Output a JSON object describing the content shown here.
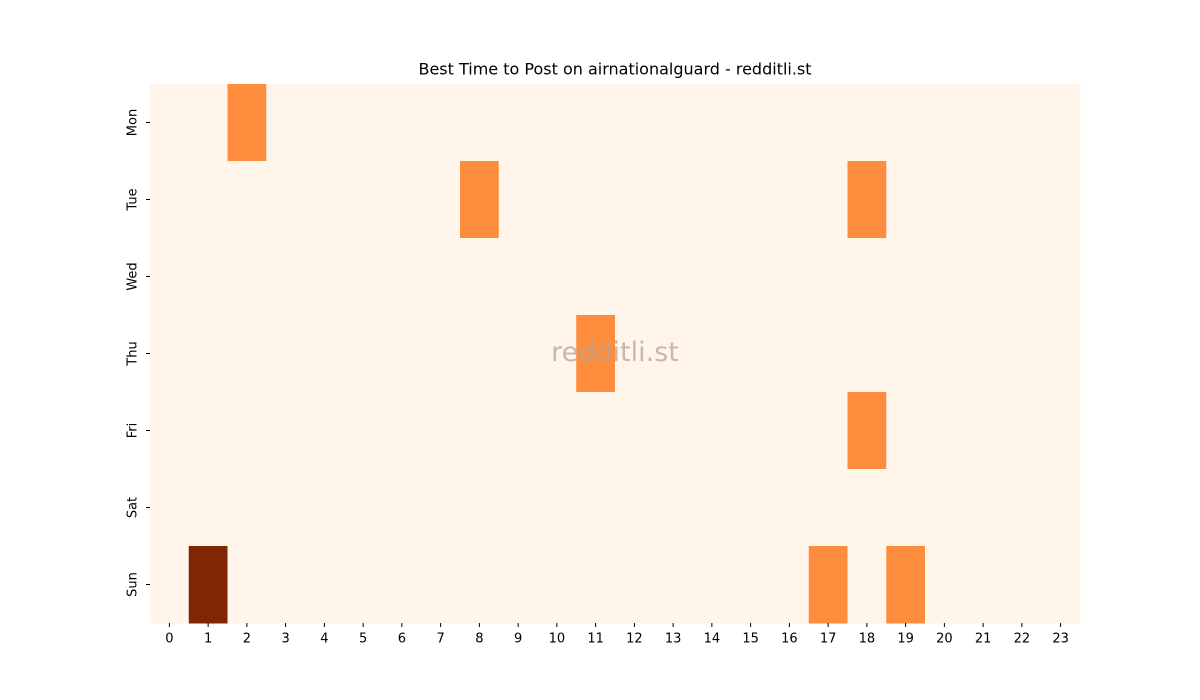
{
  "chart_data": {
    "type": "heatmap",
    "title": "Best Time to Post on airnationalguard - redditli.st",
    "watermark": "redditli.st",
    "x": [
      0,
      1,
      2,
      3,
      4,
      5,
      6,
      7,
      8,
      9,
      10,
      11,
      12,
      13,
      14,
      15,
      16,
      17,
      18,
      19,
      20,
      21,
      22,
      23
    ],
    "y": [
      "Mon",
      "Tue",
      "Wed",
      "Thu",
      "Fri",
      "Sat",
      "Sun"
    ],
    "values": [
      [
        0,
        0,
        1,
        0,
        0,
        0,
        0,
        0,
        0,
        0,
        0,
        0,
        0,
        0,
        0,
        0,
        0,
        0,
        0,
        0,
        0,
        0,
        0,
        0
      ],
      [
        0,
        0,
        0,
        0,
        0,
        0,
        0,
        0,
        1,
        0,
        0,
        0,
        0,
        0,
        0,
        0,
        0,
        0,
        1,
        0,
        0,
        0,
        0,
        0
      ],
      [
        0,
        0,
        0,
        0,
        0,
        0,
        0,
        0,
        0,
        0,
        0,
        0,
        0,
        0,
        0,
        0,
        0,
        0,
        0,
        0,
        0,
        0,
        0,
        0
      ],
      [
        0,
        0,
        0,
        0,
        0,
        0,
        0,
        0,
        0,
        0,
        0,
        1,
        0,
        0,
        0,
        0,
        0,
        0,
        0,
        0,
        0,
        0,
        0,
        0
      ],
      [
        0,
        0,
        0,
        0,
        0,
        0,
        0,
        0,
        0,
        0,
        0,
        0,
        0,
        0,
        0,
        0,
        0,
        0,
        1,
        0,
        0,
        0,
        0,
        0
      ],
      [
        0,
        0,
        0,
        0,
        0,
        0,
        0,
        0,
        0,
        0,
        0,
        0,
        0,
        0,
        0,
        0,
        0,
        0,
        0,
        0,
        0,
        0,
        0,
        0
      ],
      [
        0,
        2,
        0,
        0,
        0,
        0,
        0,
        0,
        0,
        0,
        0,
        0,
        0,
        0,
        0,
        0,
        0,
        1,
        0,
        1,
        0,
        0,
        0,
        0
      ]
    ],
    "colors": [
      "#fff5eb",
      "#fd8d3c",
      "#7f2704"
    ]
  }
}
